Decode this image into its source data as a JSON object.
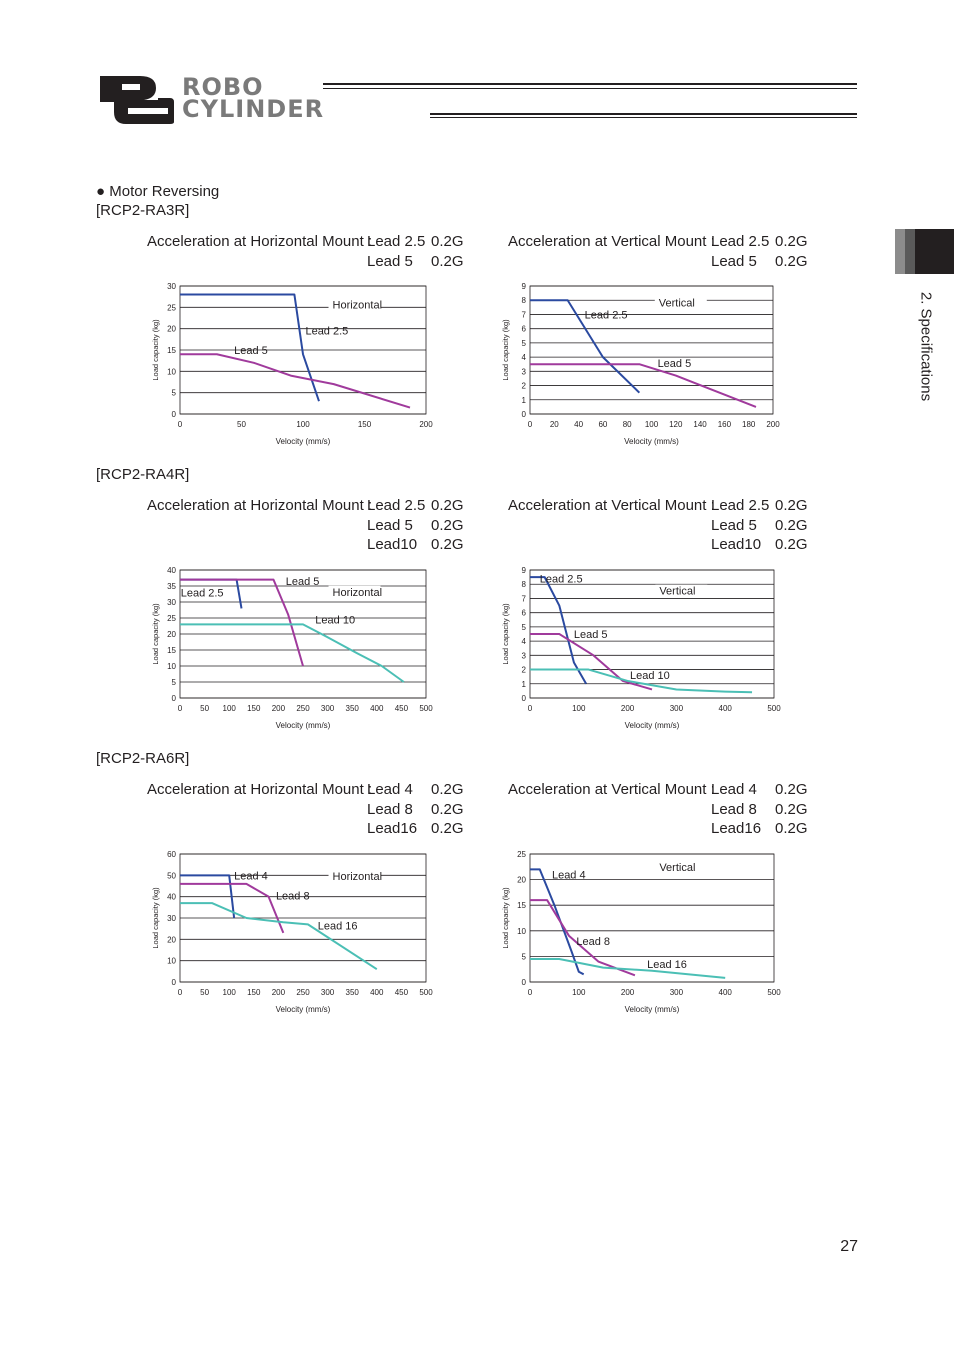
{
  "header": {
    "logo_text_line1": "ROBO",
    "logo_text_line2": "CYLINDER"
  },
  "side_tab": {
    "label": "2. Specifications"
  },
  "section": {
    "title": "● Motor Reversing"
  },
  "page_number": "27",
  "models": [
    {
      "name": "[RCP2-RA3R]",
      "horizontal_caption": {
        "title": "Acceleration at Horizontal Mount :",
        "rows": [
          [
            "Lead 2.5",
            "0.2G"
          ],
          [
            "Lead 5",
            "0.2G"
          ]
        ]
      },
      "vertical_caption": {
        "title": "Acceleration at Vertical Mount :",
        "rows": [
          [
            "Lead 2.5",
            "0.2G"
          ],
          [
            "Lead 5",
            "0.2G"
          ]
        ]
      }
    },
    {
      "name": "[RCP2-RA4R]",
      "horizontal_caption": {
        "title": "Acceleration at Horizontal Mount :",
        "rows": [
          [
            "Lead 2.5",
            "0.2G"
          ],
          [
            "Lead 5",
            "0.2G"
          ],
          [
            "Lead10",
            "0.2G"
          ]
        ]
      },
      "vertical_caption": {
        "title": "Acceleration at Vertical Mount :",
        "rows": [
          [
            "Lead 2.5",
            "0.2G"
          ],
          [
            "Lead 5",
            "0.2G"
          ],
          [
            "Lead10",
            "0.2G"
          ]
        ]
      }
    },
    {
      "name": "[RCP2-RA6R]",
      "horizontal_caption": {
        "title": "Acceleration at Horizontal Mount :",
        "rows": [
          [
            "Lead 4",
            "0.2G"
          ],
          [
            "Lead 8",
            "0.2G"
          ],
          [
            "Lead16",
            "0.2G"
          ]
        ]
      },
      "vertical_caption": {
        "title": "Acceleration at Vertical Mount :",
        "rows": [
          [
            "Lead 4",
            "0.2G"
          ],
          [
            "Lead 8",
            "0.2G"
          ],
          [
            "Lead16",
            "0.2G"
          ]
        ]
      }
    }
  ],
  "colors": {
    "lead_small": "#2b4aa0",
    "lead_mid": "#a03a9c",
    "lead_large": "#4bbfb5",
    "text": "#231f20",
    "logo_grey": "#7a7a7a"
  },
  "chart_data": [
    {
      "type": "line",
      "title": "Horizontal",
      "xlabel": "Velocity (mm/s)",
      "ylabel": "Load capacity (kg)",
      "xlim": [
        0,
        200
      ],
      "ylim": [
        0,
        30
      ],
      "xticks": [
        0,
        50,
        100,
        150,
        200
      ],
      "yticks": [
        0,
        5,
        10,
        15,
        20,
        25,
        30
      ],
      "series": [
        {
          "name": "Lead 2.5",
          "color_key": "lead_small",
          "points": [
            [
              0,
              28
            ],
            [
              93,
              28
            ],
            [
              100,
              14
            ],
            [
              113,
              3
            ]
          ]
        },
        {
          "name": "Lead 5",
          "color_key": "lead_mid",
          "points": [
            [
              0,
              14
            ],
            [
              30,
              14
            ],
            [
              60,
              12
            ],
            [
              90,
              9
            ],
            [
              125,
              7
            ],
            [
              187,
              1.5
            ]
          ]
        }
      ]
    },
    {
      "type": "line",
      "title": "Vertical",
      "xlabel": "Velocity (mm/s)",
      "ylabel": "Load capacity (kg)",
      "xlim": [
        0,
        200
      ],
      "ylim": [
        0,
        9
      ],
      "xticks": [
        0,
        20,
        40,
        60,
        80,
        100,
        120,
        140,
        160,
        180,
        200
      ],
      "yticks": [
        0,
        1,
        2,
        3,
        4,
        5,
        6,
        7,
        8,
        9
      ],
      "series": [
        {
          "name": "Lead 2.5",
          "color_key": "lead_small",
          "points": [
            [
              0,
              8
            ],
            [
              31,
              8
            ],
            [
              60,
              4
            ],
            [
              90,
              1.5
            ]
          ]
        },
        {
          "name": "Lead 5",
          "color_key": "lead_mid",
          "points": [
            [
              0,
              3.5
            ],
            [
              90,
              3.5
            ],
            [
              120,
              2.7
            ],
            [
              186,
              0.5
            ]
          ]
        }
      ]
    },
    {
      "type": "line",
      "title": "Horizontal",
      "xlabel": "Velocity (mm/s)",
      "ylabel": "Load capacity (kg)",
      "xlim": [
        0,
        500
      ],
      "ylim": [
        0,
        40
      ],
      "xticks": [
        0,
        50,
        100,
        150,
        200,
        250,
        300,
        350,
        400,
        450,
        500
      ],
      "yticks": [
        0,
        5,
        10,
        15,
        20,
        25,
        30,
        35,
        40
      ],
      "series": [
        {
          "name": "Lead 2.5",
          "color_key": "lead_small",
          "points": [
            [
              0,
              37
            ],
            [
              115,
              37
            ],
            [
              125,
              28
            ]
          ]
        },
        {
          "name": "Lead 5",
          "color_key": "lead_mid",
          "points": [
            [
              0,
              37
            ],
            [
              190,
              37
            ],
            [
              220,
              26
            ],
            [
              250,
              10
            ]
          ]
        },
        {
          "name": "Lead 10",
          "color_key": "lead_large",
          "points": [
            [
              0,
              23
            ],
            [
              250,
              23
            ],
            [
              300,
              19
            ],
            [
              360,
              14
            ],
            [
              410,
              10
            ],
            [
              455,
              5
            ]
          ]
        }
      ]
    },
    {
      "type": "line",
      "title": "Vertical",
      "xlabel": "Velocity (mm/s)",
      "ylabel": "Load capacity (kg)",
      "xlim": [
        0,
        500
      ],
      "ylim": [
        0,
        9
      ],
      "xticks": [
        0,
        100,
        200,
        300,
        400,
        500
      ],
      "yticks": [
        0,
        1,
        2,
        3,
        4,
        5,
        6,
        7,
        8,
        9
      ],
      "series": [
        {
          "name": "Lead 2.5",
          "color_key": "lead_small",
          "points": [
            [
              0,
              8.5
            ],
            [
              30,
              8.5
            ],
            [
              60,
              6.5
            ],
            [
              90,
              2.5
            ],
            [
              115,
              1
            ]
          ]
        },
        {
          "name": "Lead 5",
          "color_key": "lead_mid",
          "points": [
            [
              0,
              4.5
            ],
            [
              60,
              4.5
            ],
            [
              130,
              3
            ],
            [
              190,
              1.2
            ],
            [
              250,
              0.6
            ]
          ]
        },
        {
          "name": "Lead 10",
          "color_key": "lead_large",
          "points": [
            [
              0,
              2
            ],
            [
              120,
              2
            ],
            [
              200,
              1.2
            ],
            [
              300,
              0.6
            ],
            [
              400,
              0.45
            ],
            [
              455,
              0.4
            ]
          ]
        }
      ]
    },
    {
      "type": "line",
      "title": "Horizontal",
      "xlabel": "Velocity (mm/s)",
      "ylabel": "Load capacity (kg)",
      "xlim": [
        0,
        500
      ],
      "ylim": [
        0,
        60
      ],
      "xticks": [
        0,
        50,
        100,
        150,
        200,
        250,
        300,
        350,
        400,
        450,
        500
      ],
      "yticks": [
        0,
        10,
        20,
        30,
        40,
        50,
        60
      ],
      "series": [
        {
          "name": "Lead 4",
          "color_key": "lead_small",
          "points": [
            [
              0,
              50
            ],
            [
              100,
              50
            ],
            [
              110,
              30
            ]
          ]
        },
        {
          "name": "Lead 8",
          "color_key": "lead_mid",
          "points": [
            [
              0,
              46
            ],
            [
              135,
              46
            ],
            [
              180,
              40
            ],
            [
              210,
              23
            ]
          ]
        },
        {
          "name": "Lead 16",
          "color_key": "lead_large",
          "points": [
            [
              0,
              37
            ],
            [
              65,
              37
            ],
            [
              135,
              30
            ],
            [
              210,
              28
            ],
            [
              260,
              27
            ],
            [
              400,
              6
            ]
          ]
        }
      ]
    },
    {
      "type": "line",
      "title": "Vertical",
      "xlabel": "Velocity (mm/s)",
      "ylabel": "Load capacity (kg)",
      "xlim": [
        0,
        500
      ],
      "ylim": [
        0,
        25
      ],
      "xticks": [
        0,
        100,
        200,
        300,
        400,
        500
      ],
      "yticks": [
        0,
        5,
        10,
        15,
        20,
        25
      ],
      "series": [
        {
          "name": "Lead 4",
          "color_key": "lead_small",
          "points": [
            [
              0,
              22
            ],
            [
              20,
              22
            ],
            [
              50,
              15
            ],
            [
              85,
              6
            ],
            [
              100,
              2
            ],
            [
              110,
              1.5
            ]
          ]
        },
        {
          "name": "Lead 8",
          "color_key": "lead_mid",
          "points": [
            [
              0,
              16
            ],
            [
              35,
              16
            ],
            [
              80,
              9
            ],
            [
              140,
              4
            ],
            [
              215,
              1.3
            ]
          ]
        },
        {
          "name": "Lead 16",
          "color_key": "lead_large",
          "points": [
            [
              0,
              4.5
            ],
            [
              60,
              4.5
            ],
            [
              150,
              2.8
            ],
            [
              250,
              2.2
            ],
            [
              400,
              0.8
            ]
          ]
        }
      ]
    }
  ]
}
